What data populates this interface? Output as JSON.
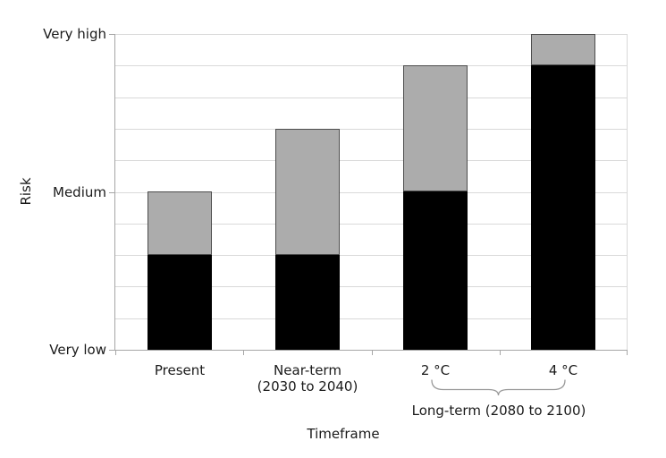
{
  "chart_data": {
    "type": "bar",
    "stacked": true,
    "title": "",
    "xlabel": "Timeframe",
    "ylabel": "Risk",
    "ylim": [
      0,
      10
    ],
    "gridline_step": 1,
    "grid": true,
    "legend": false,
    "categories": [
      {
        "lines": [
          "Present"
        ]
      },
      {
        "lines": [
          "Near-term",
          "(2030 to 2040)"
        ]
      },
      {
        "lines": [
          "2 °C"
        ]
      },
      {
        "lines": [
          "4 °C"
        ]
      }
    ],
    "series": [
      {
        "name": "risk-level-lower-black",
        "color": "#000000",
        "border": "#000000",
        "values": [
          3,
          3,
          5,
          9
        ]
      },
      {
        "name": "risk-level-additional-gray",
        "color": "#acacac",
        "border": "#4d4d4d",
        "values": [
          2,
          4,
          4,
          1
        ]
      }
    ],
    "yticks": [
      {
        "value": 0,
        "label": "Very low"
      },
      {
        "value": 5,
        "label": "Medium"
      },
      {
        "value": 10,
        "label": "Very high"
      }
    ],
    "group_annotation": {
      "label": "Long-term (2080 to 2100)",
      "from_category": 2,
      "to_category": 3
    },
    "styles": {
      "gridline": "#d9d9d9",
      "axis": "#a6a6a6",
      "brace": "#999999",
      "text": "#1a1a1a",
      "background": "#ffffff"
    }
  }
}
